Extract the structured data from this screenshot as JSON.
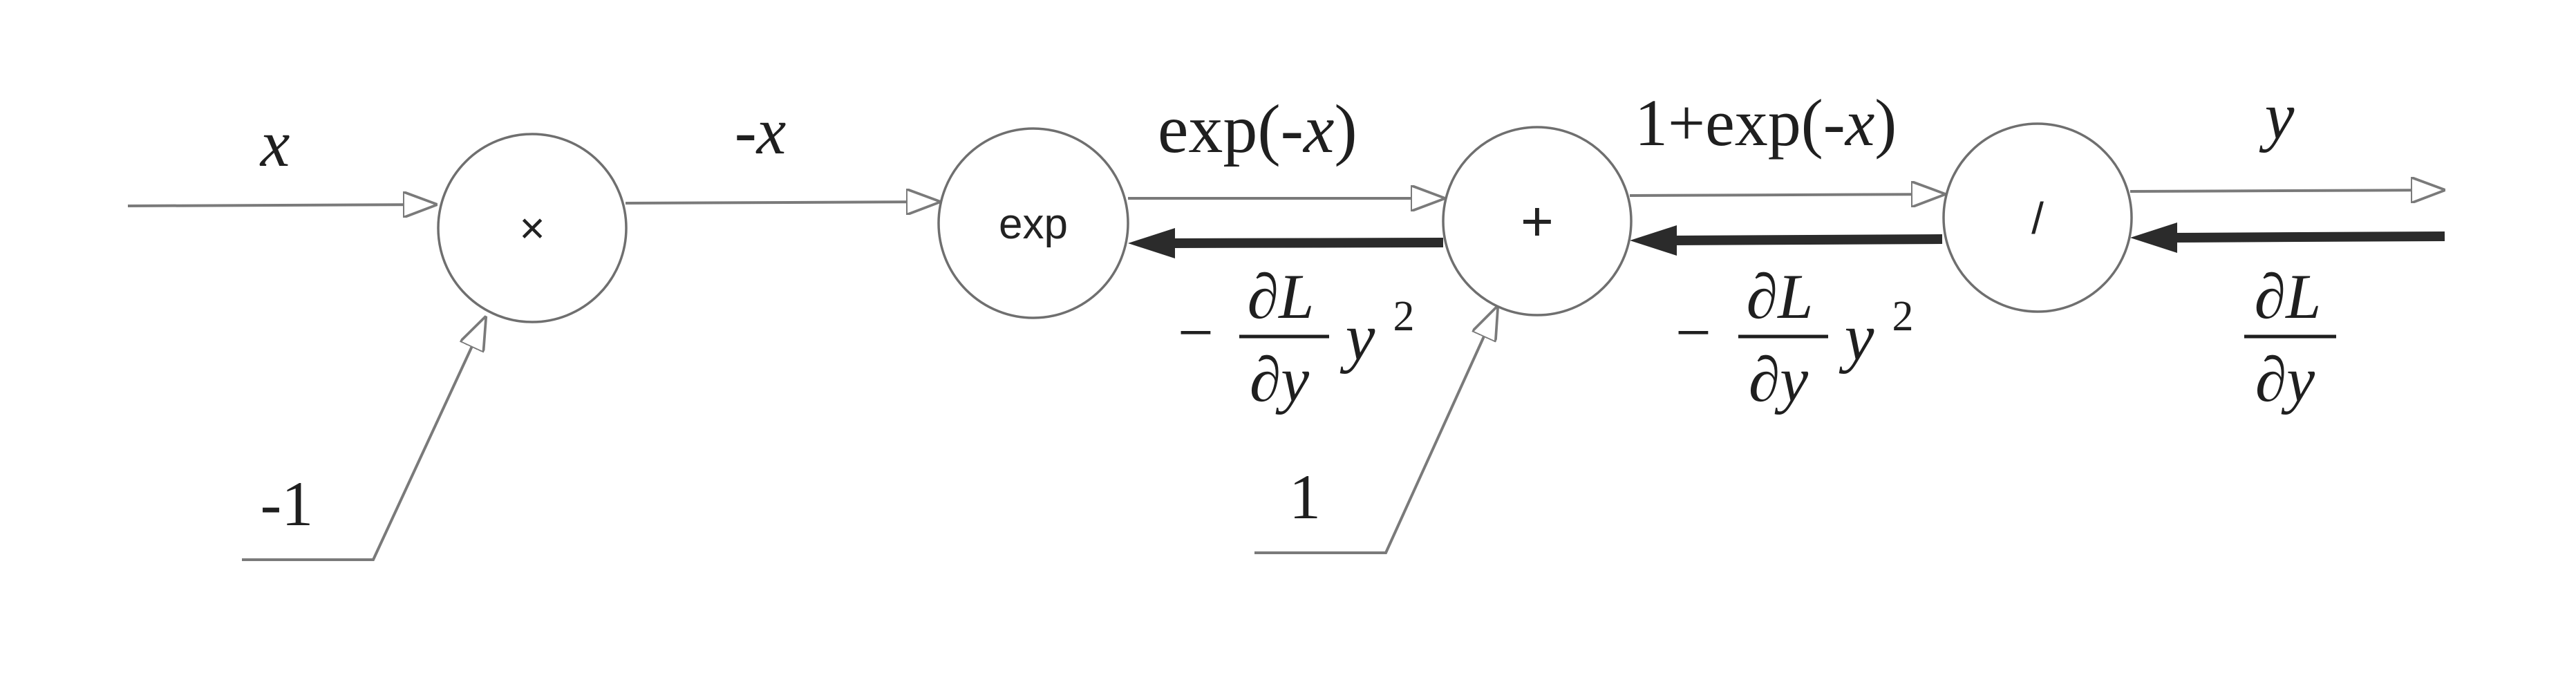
{
  "nodes": {
    "multiply": {
      "symbol": "×"
    },
    "exp": {
      "symbol": "exp"
    },
    "add": {
      "symbol": "+"
    },
    "divide": {
      "symbol": "/"
    }
  },
  "forward_labels": {
    "input_x": "x",
    "neg_x": "-x",
    "exp_neg_x": {
      "prefix": "exp(-",
      "var": "x",
      "suffix": ")"
    },
    "one_plus_exp": {
      "prefix": "1+exp(-",
      "var": "x",
      "suffix": ")"
    },
    "output_y": "y"
  },
  "side_inputs": {
    "minus_one": "-1",
    "one": "1"
  },
  "gradient_labels": {
    "upstream": {
      "numerator": "∂L",
      "denominator": "∂y"
    },
    "after_divide": {
      "sign": "−",
      "numerator": "∂L",
      "denominator": "∂y",
      "var": "y",
      "power": "2"
    },
    "after_add": {
      "sign": "−",
      "numerator": "∂L",
      "denominator": "∂y",
      "var": "y",
      "power": "2"
    }
  },
  "colors": {
    "forward_edge": "#7a7a7a",
    "backward_edge": "#2b2b2b",
    "node_outline": "#6f6f6f"
  }
}
